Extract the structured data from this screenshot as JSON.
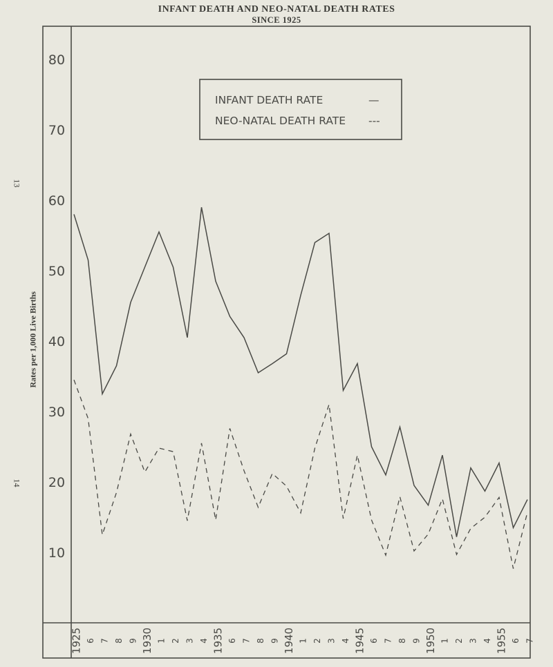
{
  "page": {
    "title": "INFANT DEATH AND NEO-NATAL DEATH RATES",
    "subtitle": "SINCE 1925",
    "page_number_top": "13",
    "page_number_bottom": "14"
  },
  "chart_data": {
    "type": "line",
    "title": "INFANT DEATH AND NEO-NATAL DEATH RATES",
    "subtitle": "SINCE 1925",
    "xlabel": "",
    "ylabel": "Rates per 1,000 Live Births",
    "ylim": [
      0,
      80
    ],
    "yticks": [
      "10",
      "20",
      "30",
      "40",
      "50",
      "60",
      "70",
      "80"
    ],
    "x": [
      1925,
      1926,
      1927,
      1928,
      1929,
      1930,
      1931,
      1932,
      1933,
      1934,
      1935,
      1936,
      1937,
      1938,
      1939,
      1940,
      1941,
      1942,
      1943,
      1944,
      1945,
      1946,
      1947,
      1948,
      1949,
      1950,
      1951,
      1952,
      1953,
      1954,
      1955,
      1956,
      1957
    ],
    "xtick_labels": [
      "1925",
      "6",
      "7",
      "8",
      "9",
      "1930",
      "1",
      "2",
      "3",
      "4",
      "1935",
      "6",
      "7",
      "8",
      "9",
      "1940",
      "1",
      "2",
      "3",
      "4",
      "1945",
      "6",
      "7",
      "8",
      "9",
      "1950",
      "1",
      "2",
      "3",
      "4",
      "1955",
      "6",
      "7"
    ],
    "grid": false,
    "legend_position": "top-center",
    "series": [
      {
        "name": "INFANT DEATH RATE",
        "legend_symbol": "—",
        "style": "solid",
        "values": [
          58,
          51.5,
          32.5,
          36.5,
          45.5,
          50.5,
          55.5,
          50.5,
          40.5,
          59,
          48.5,
          43.5,
          40.5,
          35.5,
          36.8,
          38.2,
          46.5,
          54,
          55.3,
          33,
          36.8,
          25,
          21,
          27.8,
          19.5,
          16.7,
          23.8,
          12.2,
          22,
          18.7,
          22.7,
          13.5,
          17.5
        ]
      },
      {
        "name": "NEO-NATAL DEATH RATE",
        "legend_symbol": "---",
        "style": "dashed",
        "values": [
          34.5,
          29,
          12.5,
          18.5,
          26.8,
          21.4,
          24.8,
          24.3,
          14.5,
          25.5,
          14.6,
          27.6,
          21.6,
          16.4,
          21.2,
          19.4,
          15.6,
          24.8,
          31,
          14.8,
          23.8,
          14.6,
          9.6,
          17.9,
          10.2,
          12.6,
          17.6,
          9.7,
          13.4,
          15,
          17.8,
          7.7,
          15.7
        ]
      }
    ]
  }
}
